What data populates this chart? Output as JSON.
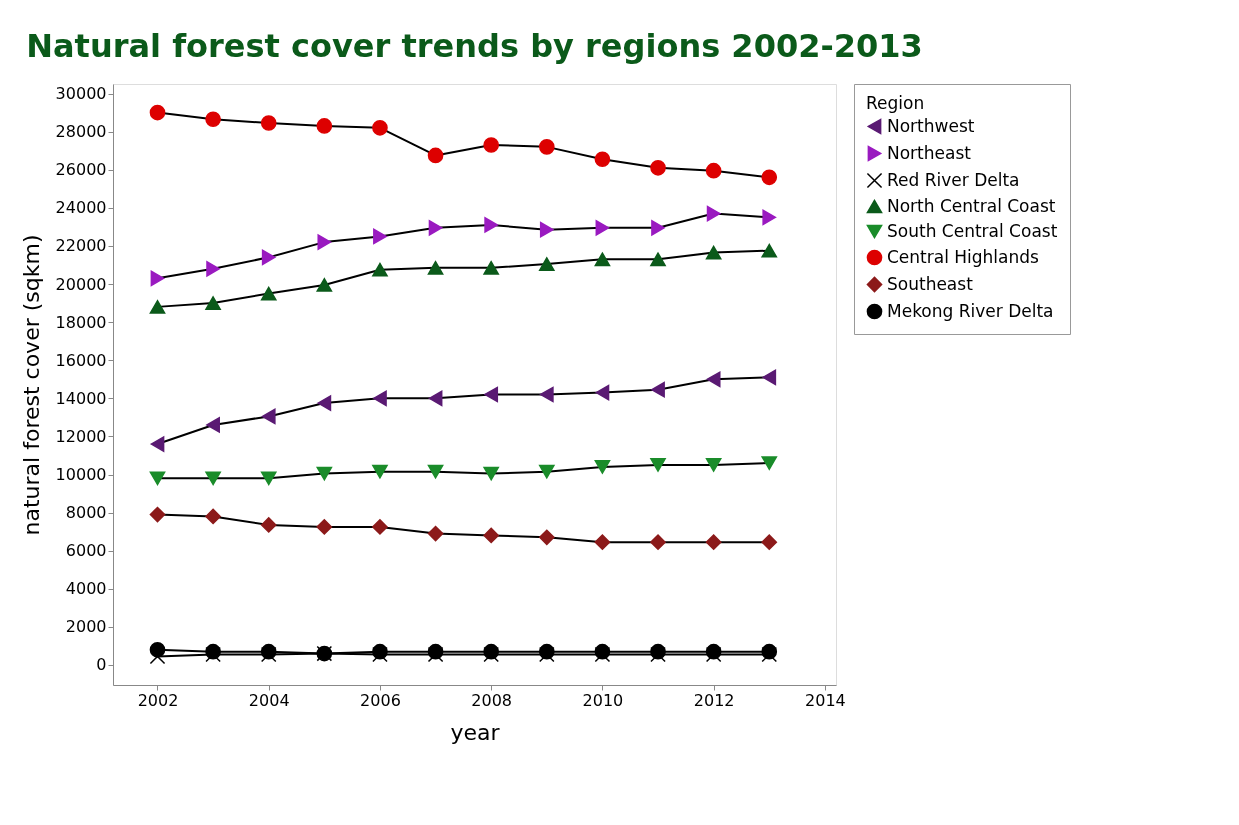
{
  "chart_data": {
    "type": "line",
    "title": "Natural forest cover trends by regions 2002-2013",
    "xlabel": "year",
    "ylabel": "natural forest cover (sqkm)",
    "legend_title": "Region",
    "x": [
      2002,
      2003,
      2004,
      2005,
      2006,
      2007,
      2008,
      2009,
      2010,
      2011,
      2012,
      2013
    ],
    "series": [
      {
        "name": "Northwest",
        "color": "#5a1a73",
        "marker": "triangle-left",
        "values": [
          11600,
          12600,
          13050,
          13750,
          14000,
          14000,
          14200,
          14200,
          14300,
          14450,
          15000,
          15100
        ]
      },
      {
        "name": "Northeast",
        "color": "#9a1ac0",
        "marker": "triangle-right",
        "values": [
          20300,
          20800,
          21400,
          22200,
          22500,
          22950,
          23100,
          22850,
          22950,
          22950,
          23700,
          23500
        ]
      },
      {
        "name": "Red River Delta",
        "color": "#000000",
        "marker": "cross",
        "values": [
          450,
          550,
          550,
          600,
          550,
          550,
          550,
          550,
          550,
          550,
          550,
          550
        ]
      },
      {
        "name": "North Central Coast",
        "color": "#0b5a1a",
        "marker": "triangle-up",
        "values": [
          18800,
          19000,
          19500,
          19950,
          20750,
          20850,
          20850,
          21050,
          21300,
          21300,
          21650,
          21750
        ]
      },
      {
        "name": "South Central Coast",
        "color": "#1a8c2a",
        "marker": "triangle-down",
        "values": [
          9800,
          9800,
          9800,
          10050,
          10150,
          10150,
          10050,
          10150,
          10400,
          10500,
          10500,
          10600
        ]
      },
      {
        "name": "Central Highlands",
        "color": "#dd0000",
        "marker": "circle",
        "values": [
          29000,
          28650,
          28450,
          28300,
          28200,
          26750,
          27300,
          27200,
          26550,
          26100,
          25950,
          25600
        ]
      },
      {
        "name": "Southeast",
        "color": "#8c1a1a",
        "marker": "diamond",
        "values": [
          7900,
          7800,
          7350,
          7250,
          7250,
          6900,
          6800,
          6700,
          6450,
          6450,
          6450,
          6450
        ]
      },
      {
        "name": "Mekong River Delta",
        "color": "#000000",
        "marker": "circle",
        "values": [
          800,
          700,
          700,
          600,
          700,
          700,
          700,
          700,
          700,
          700,
          700,
          700
        ]
      }
    ],
    "xlim": [
      2001.2,
      2014.2
    ],
    "xticks": [
      2002,
      2004,
      2006,
      2008,
      2010,
      2012,
      2014
    ],
    "ylim": [
      -1050,
      30500
    ],
    "yticks": [
      0,
      2000,
      4000,
      6000,
      8000,
      10000,
      12000,
      14000,
      16000,
      18000,
      20000,
      22000,
      24000,
      26000,
      28000,
      30000
    ],
    "grid": false,
    "legend": "right",
    "line_style": "solid"
  }
}
